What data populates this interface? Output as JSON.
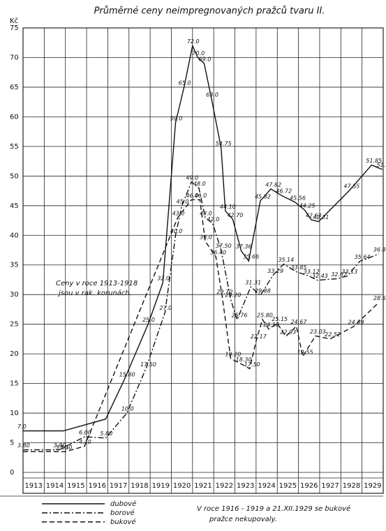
{
  "chart_data": {
    "type": "line",
    "title": "Průměrné ceny neimpregnovaných pražců tvaru II.",
    "y_unit": "Kč",
    "xlim": [
      1913,
      1930
    ],
    "categories": [
      "1913",
      "1914",
      "1915",
      "1916",
      "1917",
      "1918",
      "1919",
      "1920",
      "1921",
      "1922",
      "1923",
      "1924",
      "1925",
      "1926",
      "1927",
      "1928",
      "1929"
    ],
    "ylim": [
      0,
      75
    ],
    "yticks": [
      0,
      5,
      10,
      15,
      20,
      25,
      30,
      35,
      40,
      45,
      50,
      55,
      60,
      65,
      70,
      75
    ],
    "grid": true,
    "annotation": [
      "Ceny v roce 1913-1918",
      "jsou v rak. korunách."
    ],
    "note": [
      "V roce 1916 - 1919 a 21.XII.1929 se bukové",
      "pražce nekupovaly."
    ],
    "series": [
      {
        "name": "dubové",
        "color": "#111111",
        "line_style": "solid",
        "x": [
          1913.0,
          1914.9,
          1916.9,
          1917.8,
          1918.9,
          1919.6,
          1920.2,
          1920.6,
          1921.0,
          1921.25,
          1921.55,
          1921.9,
          1922.35,
          1922.55,
          1922.9,
          1923.3,
          1923.65,
          1924.2,
          1924.7,
          1925.2,
          1925.85,
          1926.3,
          1926.6,
          1926.95,
          1928.4,
          1929.45,
          1929.95
        ],
        "values": [
          7.0,
          7.0,
          9.0,
          15.8,
          25.0,
          32.0,
          59.0,
          65.0,
          72.0,
          70.0,
          69.0,
          63.0,
          54.75,
          44.1,
          42.7,
          37.36,
          35.66,
          45.82,
          47.82,
          46.72,
          45.56,
          44.25,
          42.63,
          42.31,
          47.55,
          51.85,
          51.13
        ],
        "value_labels": [
          "7.0",
          null,
          null,
          "15.80",
          "25.0",
          "32.0",
          "59.0",
          "65.0",
          "72.0",
          "70.0",
          "69.0",
          "63.0",
          "54.75",
          "44.10",
          "42.70",
          "37.36",
          "35.66",
          "45.82",
          "47.82",
          "46.72",
          "45.56",
          "44.25",
          "42.63",
          "42.31",
          "47.55",
          "51.85",
          "51.13"
        ]
      },
      {
        "name": "borové",
        "color": "#111111",
        "line_style": "dashdot",
        "x": [
          1913.0,
          1914.7,
          1915.9,
          1916.9,
          1917.9,
          1918.8,
          1919.7,
          1920.2,
          1920.5,
          1920.95,
          1921.3,
          1921.6,
          1921.95,
          1922.35,
          1922.8,
          1923.1,
          1923.75,
          1924.2,
          1924.8,
          1925.3,
          1925.9,
          1926.5,
          1926.9,
          1927.8,
          1928.3,
          1928.9,
          1929.8
        ],
        "values": [
          3.8,
          3.8,
          6.0,
          5.8,
          10.0,
          17.5,
          27.0,
          40.0,
          45.0,
          49.0,
          48.0,
          43.0,
          42.0,
          37.5,
          29.2,
          25.76,
          31.31,
          29.88,
          33.29,
          35.14,
          33.85,
          33.12,
          32.43,
          32.67,
          33.13,
          35.64,
          36.84
        ],
        "value_labels": [
          "3.80",
          "3.80",
          "6.00",
          "5.80",
          "10.0",
          "17.50",
          "27.0",
          "40.0",
          "45.0",
          "49.0",
          "48.0",
          "43.0",
          "42.0",
          "37.50",
          "29.20",
          "25.76",
          "31.31",
          "29.88",
          "33.29",
          "35.14",
          "33.85",
          "33.12",
          "32.43",
          "32.67",
          "33.13",
          "35.64",
          "36.84"
        ]
      },
      {
        "name": "bukové",
        "color": "#111111",
        "line_style": "dashed",
        "x": [
          1913.0,
          1914.8,
          1915.0,
          1915.9,
          1920.3,
          1920.95,
          1921.35,
          1921.6,
          1922.1,
          1922.4,
          1922.8,
          1923.3,
          1923.7,
          1924.0,
          1924.3,
          1924.6,
          1925.0,
          1925.4,
          1925.9,
          1926.2,
          1926.8,
          1927.5,
          1928.6,
          1929.8
        ],
        "values": [
          3.5,
          3.5,
          3.5,
          4.4,
          43.0,
          46.0,
          46.0,
          39.0,
          36.4,
          29.7,
          19.2,
          18.3,
          17.5,
          22.17,
          25.8,
          24.18,
          25.15,
          22.93,
          24.67,
          19.55,
          23.03,
          22.52,
          24.59,
          28.69
        ],
        "value_labels": [
          null,
          "3.50",
          "3.50",
          "4.40",
          "43.0",
          "46.0",
          "46.0",
          "39.0",
          "36.40",
          "29.70",
          "19.20",
          "18.30",
          "17.50",
          "22.17",
          "25.80",
          "24.18",
          "25.15",
          "22.93",
          "24.67",
          "19.55",
          "23.03",
          "22.52",
          "24.59",
          "28.69"
        ]
      }
    ]
  }
}
